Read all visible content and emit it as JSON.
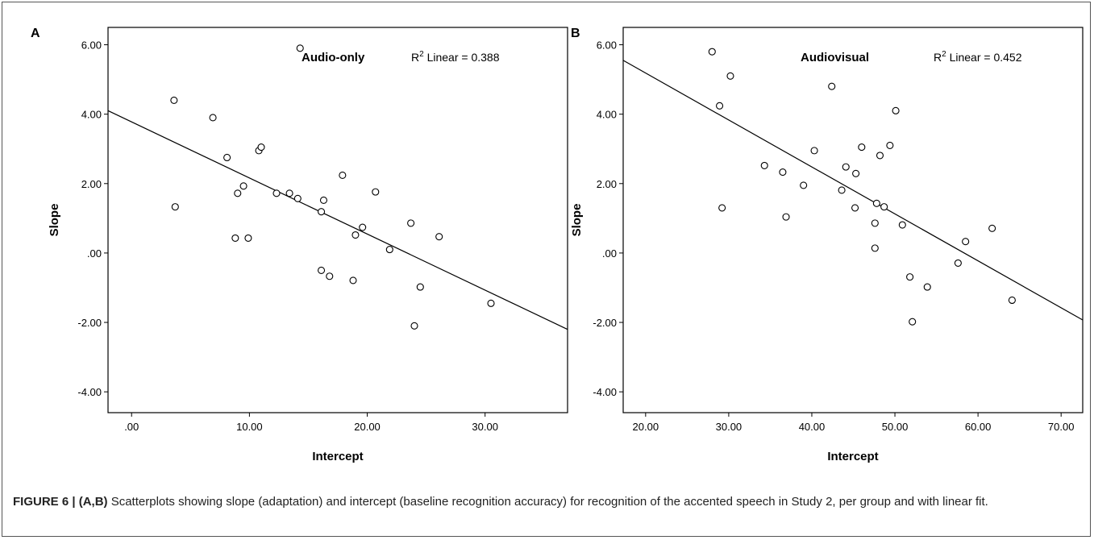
{
  "caption": {
    "label": "FIGURE 6 | (A,B)",
    "text": " Scatterplots showing slope (adaptation) and intercept (baseline recognition accuracy) for recognition of the accented speech in Study 2, per group and with linear fit."
  },
  "chart_data": [
    {
      "type": "scatter",
      "panel": "A",
      "title": "Audio-only",
      "r2_label": "R",
      "r2_sup": "2",
      "r2_rest": " Linear = 0.388",
      "xlabel": "Intercept",
      "ylabel": "Slope",
      "xlim": [
        -2,
        37
      ],
      "ylim": [
        -4.6,
        6.5
      ],
      "xticks": [
        0,
        10,
        20,
        30
      ],
      "xtick_labels": [
        ".00",
        "10.00",
        "20.00",
        "30.00"
      ],
      "yticks": [
        -4,
        -2,
        0,
        2,
        4,
        6
      ],
      "ytick_labels": [
        "-4.00",
        "-2.00",
        ".00",
        "2.00",
        "4.00",
        "6.00"
      ],
      "fit_line": {
        "x": [
          -2,
          37
        ],
        "y": [
          4.1,
          -2.2
        ]
      },
      "points": [
        {
          "x": 3.6,
          "y": 4.4
        },
        {
          "x": 3.7,
          "y": 1.33
        },
        {
          "x": 6.9,
          "y": 3.9
        },
        {
          "x": 8.1,
          "y": 2.75
        },
        {
          "x": 8.8,
          "y": 0.43
        },
        {
          "x": 9.0,
          "y": 1.72
        },
        {
          "x": 9.5,
          "y": 1.93
        },
        {
          "x": 9.9,
          "y": 0.43
        },
        {
          "x": 10.8,
          "y": 2.95
        },
        {
          "x": 11.0,
          "y": 3.05
        },
        {
          "x": 12.3,
          "y": 1.72
        },
        {
          "x": 13.4,
          "y": 1.72
        },
        {
          "x": 14.1,
          "y": 1.57
        },
        {
          "x": 14.3,
          "y": 5.9
        },
        {
          "x": 16.1,
          "y": 1.19
        },
        {
          "x": 16.1,
          "y": -0.5
        },
        {
          "x": 16.3,
          "y": 1.52
        },
        {
          "x": 16.8,
          "y": -0.67
        },
        {
          "x": 17.9,
          "y": 2.24
        },
        {
          "x": 18.8,
          "y": -0.79
        },
        {
          "x": 19.0,
          "y": 0.52
        },
        {
          "x": 19.6,
          "y": 0.74
        },
        {
          "x": 20.7,
          "y": 1.76
        },
        {
          "x": 21.9,
          "y": 0.1
        },
        {
          "x": 23.7,
          "y": 0.86
        },
        {
          "x": 24.0,
          "y": -2.1
        },
        {
          "x": 24.5,
          "y": -0.98
        },
        {
          "x": 26.1,
          "y": 0.47
        },
        {
          "x": 30.5,
          "y": -1.45
        }
      ]
    },
    {
      "type": "scatter",
      "panel": "B",
      "title": "Audiovisual",
      "r2_label": "R",
      "r2_sup": "2",
      "r2_rest": " Linear = 0.452",
      "xlabel": "Intercept",
      "ylabel": "Slope",
      "xlim": [
        17.3,
        72.6
      ],
      "ylim": [
        -4.6,
        6.5
      ],
      "xticks": [
        20,
        30,
        40,
        50,
        60,
        70
      ],
      "xtick_labels": [
        "20.00",
        "30.00",
        "40.00",
        "50.00",
        "60.00",
        "70.00"
      ],
      "yticks": [
        -4,
        -2,
        0,
        2,
        4,
        6
      ],
      "ytick_labels": [
        "-4.00",
        "-2.00",
        ".00",
        "2.00",
        "4.00",
        "6.00"
      ],
      "fit_line": {
        "x": [
          17.3,
          72.6
        ],
        "y": [
          5.55,
          -1.93
        ]
      },
      "points": [
        {
          "x": 28.0,
          "y": 5.8
        },
        {
          "x": 28.9,
          "y": 4.24
        },
        {
          "x": 29.2,
          "y": 1.3
        },
        {
          "x": 30.2,
          "y": 5.1
        },
        {
          "x": 34.3,
          "y": 2.52
        },
        {
          "x": 36.5,
          "y": 2.33
        },
        {
          "x": 36.9,
          "y": 1.04
        },
        {
          "x": 39.0,
          "y": 1.95
        },
        {
          "x": 40.3,
          "y": 2.95
        },
        {
          "x": 42.4,
          "y": 4.8
        },
        {
          "x": 43.6,
          "y": 1.81
        },
        {
          "x": 44.1,
          "y": 2.48
        },
        {
          "x": 45.2,
          "y": 1.3
        },
        {
          "x": 45.3,
          "y": 2.29
        },
        {
          "x": 46.0,
          "y": 3.05
        },
        {
          "x": 47.6,
          "y": 0.86
        },
        {
          "x": 47.6,
          "y": 0.14
        },
        {
          "x": 47.8,
          "y": 1.43
        },
        {
          "x": 48.2,
          "y": 2.81
        },
        {
          "x": 48.7,
          "y": 1.33
        },
        {
          "x": 49.4,
          "y": 3.1
        },
        {
          "x": 50.1,
          "y": 4.1
        },
        {
          "x": 50.9,
          "y": 0.81
        },
        {
          "x": 51.8,
          "y": -0.69
        },
        {
          "x": 52.1,
          "y": -1.98
        },
        {
          "x": 53.9,
          "y": -0.98
        },
        {
          "x": 57.6,
          "y": -0.29
        },
        {
          "x": 58.5,
          "y": 0.33
        },
        {
          "x": 61.7,
          "y": 0.71
        },
        {
          "x": 64.1,
          "y": -1.36
        }
      ]
    }
  ]
}
